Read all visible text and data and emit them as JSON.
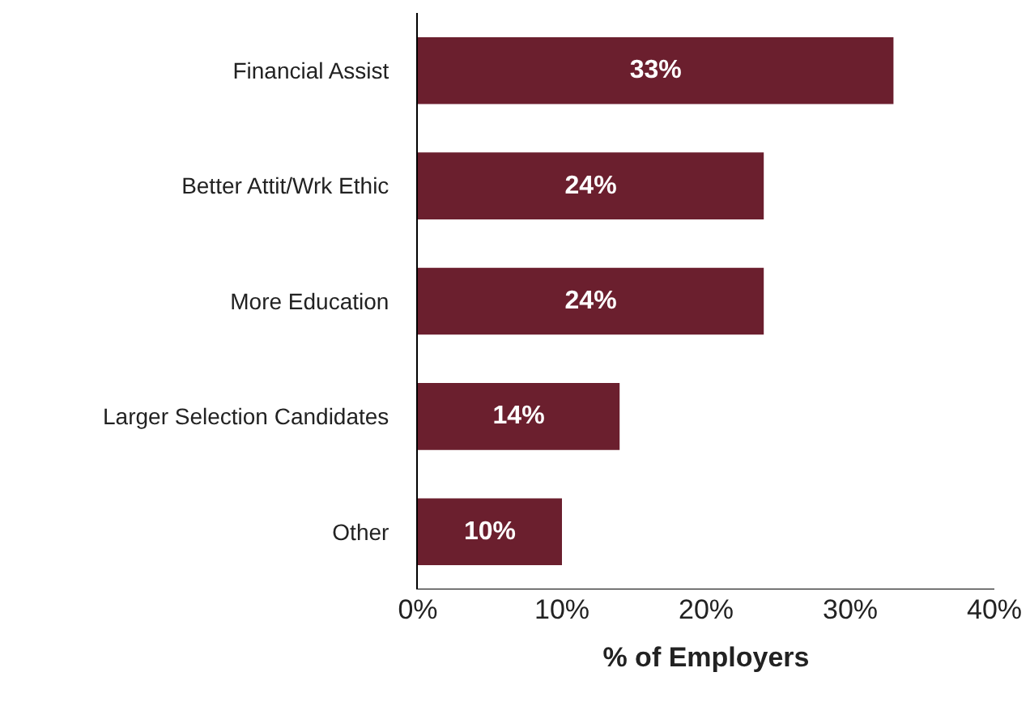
{
  "chart_data": {
    "type": "bar",
    "orientation": "horizontal",
    "xlabel": "% of Employers",
    "categories": [
      "Financial Assist",
      "Better Attit/Wrk Ethic",
      "More Education",
      "Larger Selection Candidates",
      "Other"
    ],
    "values": [
      33,
      24,
      24,
      14,
      10
    ],
    "color": "#6b1f2e",
    "value_labels": [
      "33%",
      "24%",
      "24%",
      "14%",
      "10%"
    ],
    "xlim": [
      0,
      40
    ],
    "xticks": [
      {
        "value": 0,
        "label": "0%"
      },
      {
        "value": 10,
        "label": "10%"
      },
      {
        "value": 20,
        "label": "20%"
      },
      {
        "value": 30,
        "label": "30%"
      },
      {
        "value": 40,
        "label": "40%"
      }
    ],
    "grid": false,
    "legend": false
  }
}
